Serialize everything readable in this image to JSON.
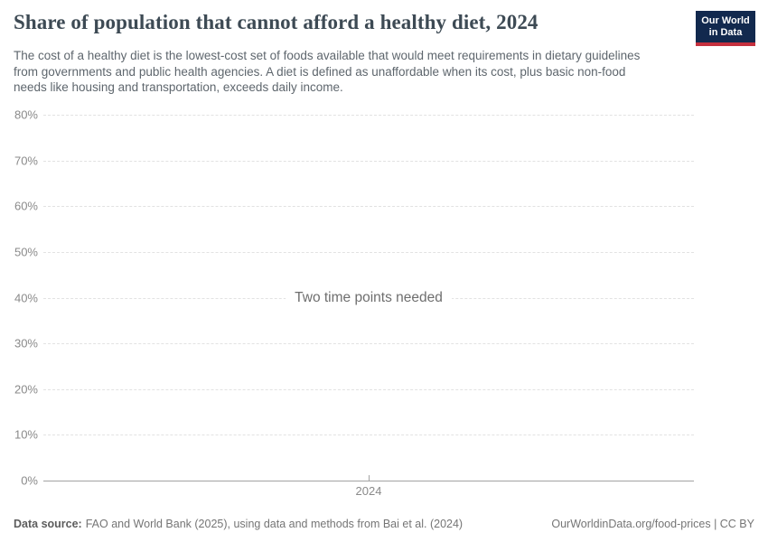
{
  "header": {
    "title": "Share of population that cannot afford a healthy diet, 2024",
    "subtitle": "The cost of a healthy diet is the lowest-cost set of foods available that would meet requirements in dietary guidelines from governments and public health agencies. A diet is defined as unaffordable when its cost, plus basic non-food needs like housing and transportation, exceeds daily income.",
    "logo_line1": "Our World",
    "logo_line2": "in Data"
  },
  "chart_data": {
    "type": "line",
    "title": "Share of population that cannot afford a healthy diet, 2024",
    "series": [],
    "empty_state_message": "Two time points needed",
    "x_tick_labels": [
      "2024"
    ],
    "y_tick_labels_top_to_bottom": [
      "80%",
      "70%",
      "60%",
      "50%",
      "40%",
      "30%",
      "20%",
      "10%",
      "0%"
    ],
    "ylim": [
      0,
      80
    ],
    "xlabel": "",
    "ylabel": "",
    "grid": "horizontal-dashed, solid baseline at 0%",
    "legend": "none"
  },
  "footer": {
    "source_bold": "Data source:",
    "source_rest": "FAO and World Bank (2025), using data and methods from Bai et al. (2024)",
    "license": "OurWorldinData.org/food-prices | CC BY"
  },
  "colors": {
    "logo_navy": "#12294e",
    "logo_red": "#c5303e",
    "title_text": "#3d4a54",
    "subtitle_text": "#5e666d",
    "axis_label": "#8a8a8a",
    "gridline": "#e2e2e2",
    "axis_line": "#a3a3a3",
    "message_text": "#6e6e6e",
    "footer_text": "#757575"
  }
}
